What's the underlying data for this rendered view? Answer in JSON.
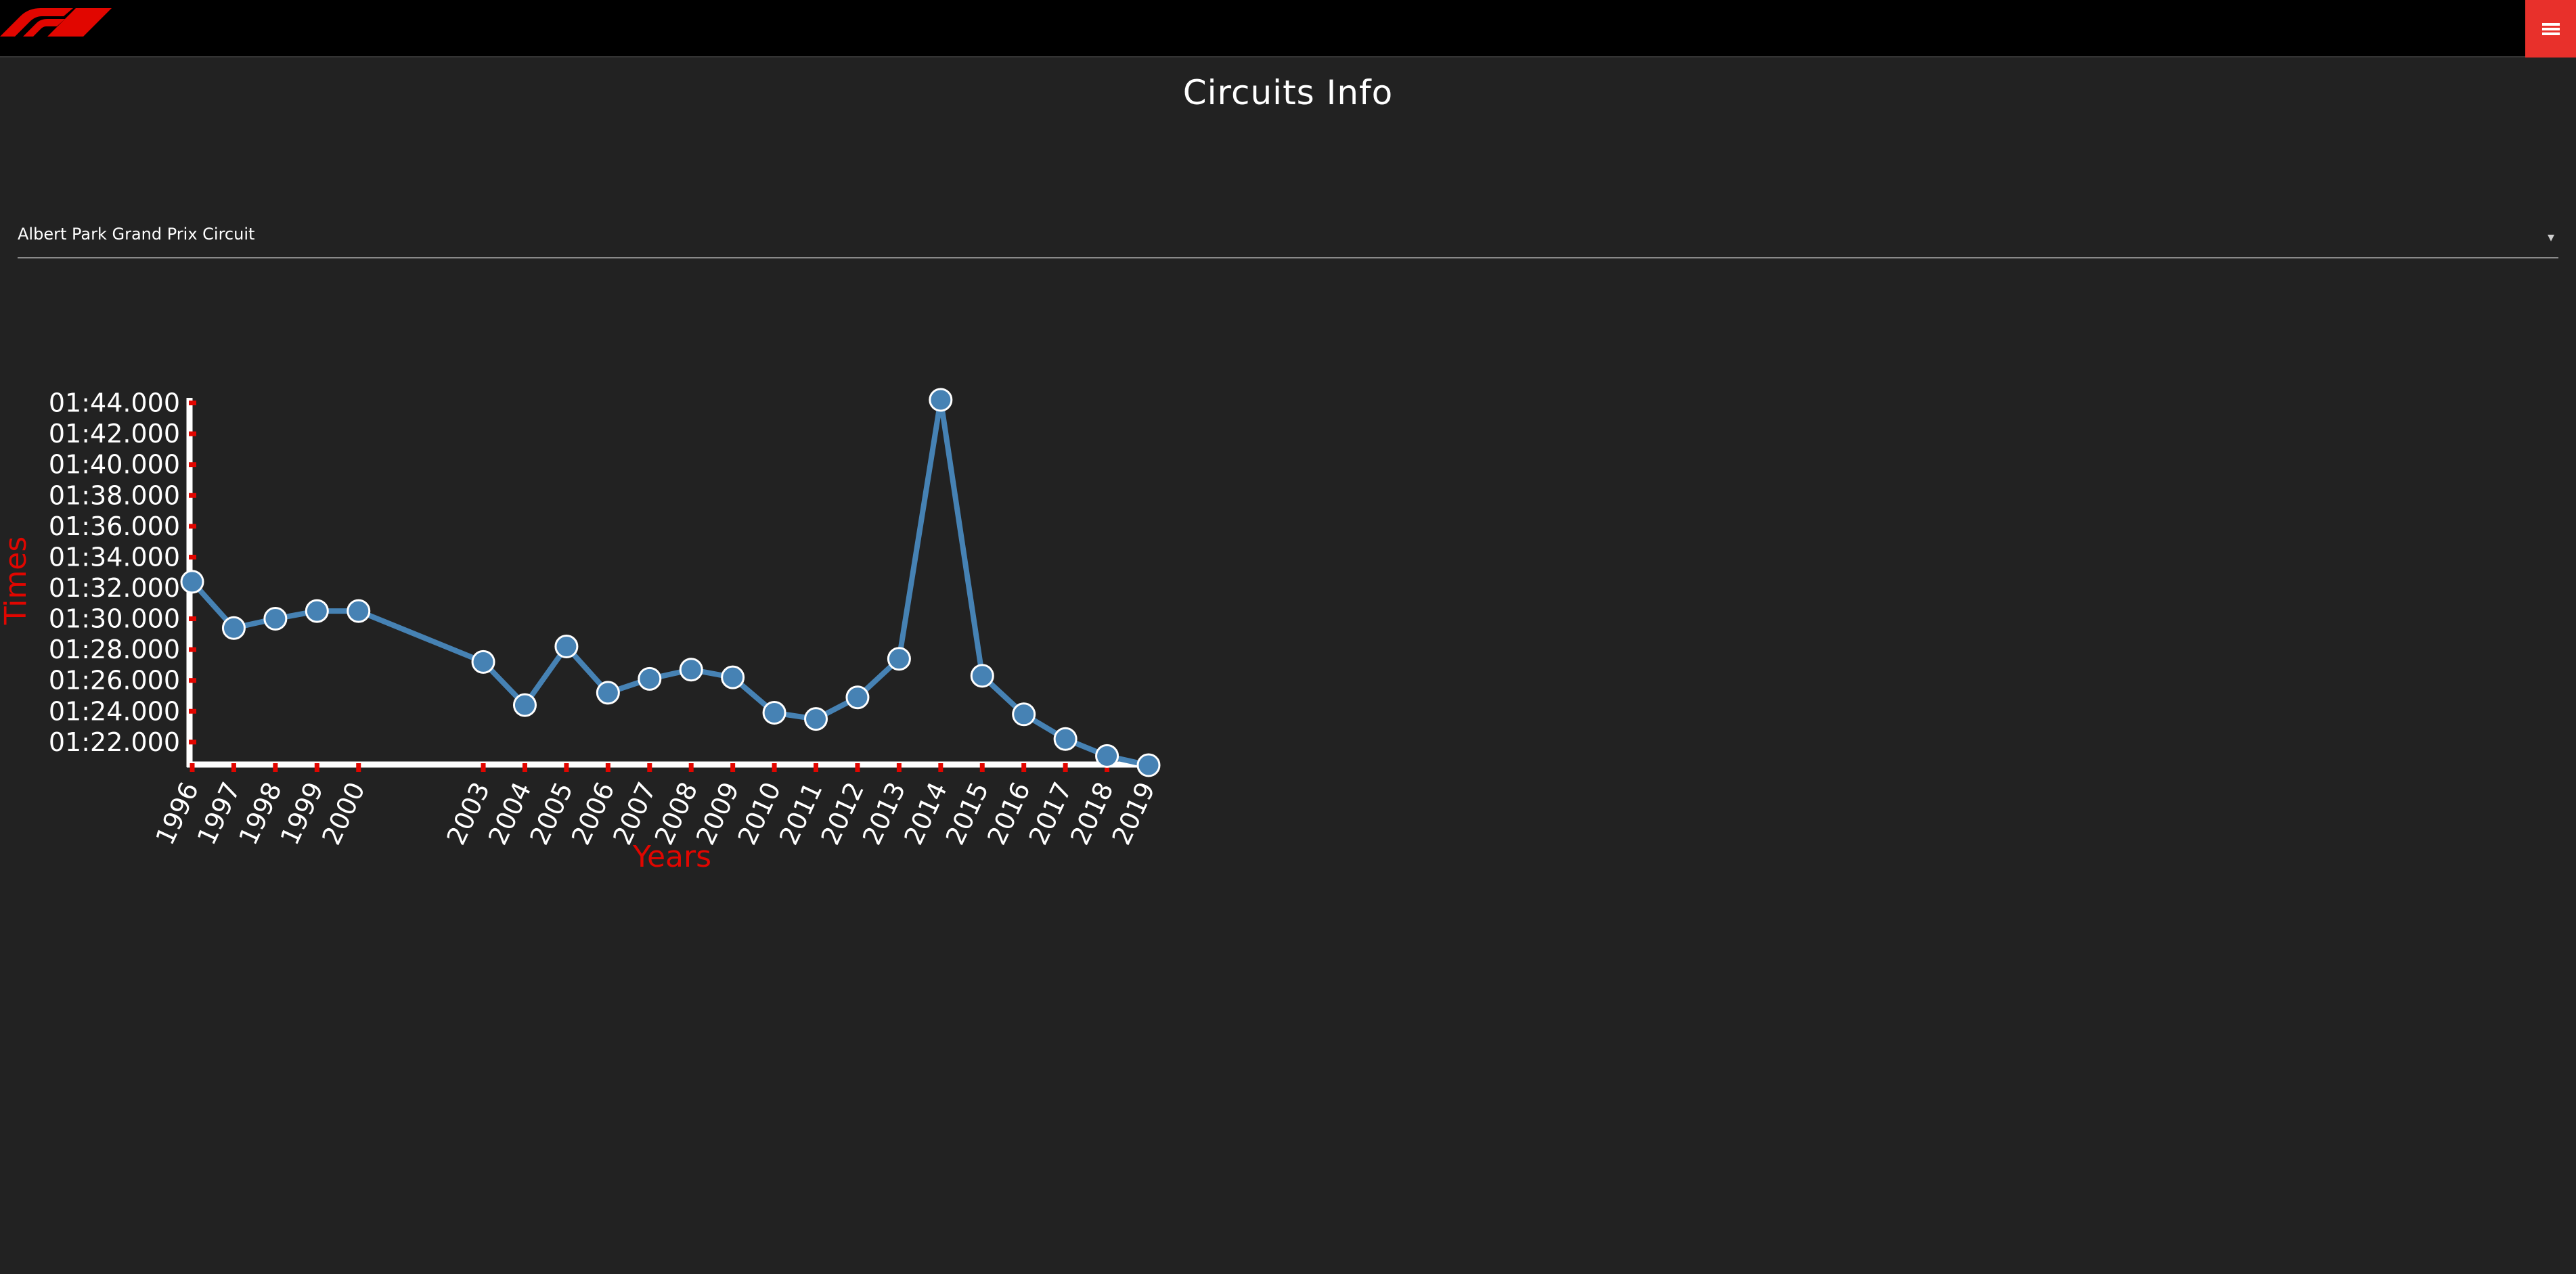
{
  "header": {
    "logo_icon": "f1-logo-icon",
    "menu_icon": "hamburger-menu-icon"
  },
  "page": {
    "title": "Circuits Info"
  },
  "circuit_select": {
    "selected": "Albert Park Grand Prix Circuit",
    "arrow_icon": "chevron-down-icon"
  },
  "colors": {
    "background": "#222222",
    "topbar": "#000000",
    "accent_red": "#e8302b",
    "axis_label_red": "#e10600",
    "line_blue": "#4682b4"
  },
  "chart_data": {
    "type": "line",
    "xlabel": "Years",
    "ylabel": "Times",
    "x": [
      1996,
      1997,
      1998,
      1999,
      2000,
      2003,
      2004,
      2005,
      2006,
      2007,
      2008,
      2009,
      2010,
      2011,
      2012,
      2013,
      2014,
      2015,
      2016,
      2017,
      2018,
      2019
    ],
    "y_labels": [
      "01:32.400",
      "01:29.400",
      "01:30.000",
      "01:30.500",
      "01:30.500",
      "01:27.200",
      "01:24.400",
      "01:28.200",
      "01:25.200",
      "01:26.100",
      "01:26.700",
      "01:26.200",
      "01:23.900",
      "01:23.500",
      "01:24.900",
      "01:27.400",
      "01:44.200",
      "01:26.300",
      "01:23.800",
      "01:22.200",
      "01:21.100",
      "01:20.500"
    ],
    "y_seconds": [
      92.4,
      89.4,
      90.0,
      90.5,
      90.5,
      87.2,
      84.4,
      88.2,
      85.2,
      86.1,
      86.7,
      86.2,
      83.9,
      83.5,
      84.9,
      87.4,
      104.2,
      86.3,
      83.8,
      82.2,
      81.1,
      80.5
    ],
    "xlim": [
      1996,
      2019
    ],
    "ylim": [
      80.5,
      104.2
    ],
    "yticks": [
      "01:22.000",
      "01:24.000",
      "01:26.000",
      "01:28.000",
      "01:30.000",
      "01:32.000",
      "01:34.000",
      "01:36.000",
      "01:38.000",
      "01:40.000",
      "01:42.000",
      "01:44.000"
    ],
    "ytick_seconds": [
      82,
      84,
      86,
      88,
      90,
      92,
      94,
      96,
      98,
      100,
      102,
      104
    ],
    "grid": false,
    "legend": "none"
  }
}
